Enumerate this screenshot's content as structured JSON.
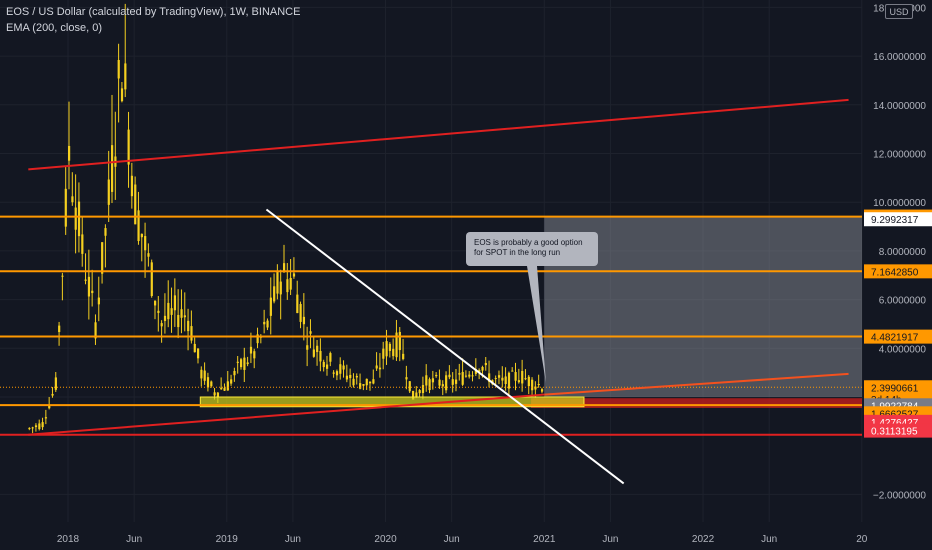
{
  "header": {
    "title": "EOS / US Dollar (calculated by TradingView), 1W, BINANCE",
    "indicator": "EMA (200, close, 0)"
  },
  "currency_button": "USD",
  "annotation": {
    "line1": "EOS is probably a good option",
    "line2": "for SPOT in the long run"
  },
  "colors": {
    "background": "#131722",
    "candle": "#f5d020",
    "orange_level": "#ff9800",
    "red_line": "#e02020",
    "white_line": "#ffffff",
    "support_zone": "#d4d419"
  },
  "chart_data": {
    "type": "candlestick",
    "symbol": "EOSUSD",
    "timeframe": "1W",
    "y_axis_ticks": [
      "18.0000000",
      "16.0000000",
      "14.0000000",
      "12.0000000",
      "10.0000000",
      "8.0000000",
      "6.0000000",
      "4.0000000",
      "2.0000000",
      "−2.0000000"
    ],
    "x_axis_ticks": [
      "2018",
      "Jun",
      "2019",
      "Jun",
      "2020",
      "Jun",
      "2021",
      "Jun",
      "2022",
      "Jun",
      "20"
    ],
    "price_labels": [
      {
        "text": "9.4100850",
        "price": 9.41,
        "kind": "orange"
      },
      {
        "text": "9.2992317",
        "price": 9.3,
        "kind": "white"
      },
      {
        "text": "7.1642850",
        "price": 7.16,
        "kind": "orange"
      },
      {
        "text": "4.4821917",
        "price": 4.48,
        "kind": "orange"
      },
      {
        "text": "2.3990661",
        "price": 2.4,
        "kind": "orange"
      },
      {
        "text": "3d 14h",
        "price": 1.92,
        "kind": "countdown"
      },
      {
        "text": "1.9922784",
        "price": 1.66,
        "kind": "gray"
      },
      {
        "text": "1.6662527",
        "price": 1.33,
        "kind": "orange"
      },
      {
        "text": "1.4276427",
        "price": 0.98,
        "kind": "red"
      },
      {
        "text": "0.3113195",
        "price": 0.62,
        "kind": "red"
      }
    ],
    "horizontal_levels": [
      9.41,
      7.164285,
      4.4821917,
      1.6662527
    ],
    "support_zone": {
      "from": 1.6,
      "to": 2.0
    },
    "trendlines": [
      {
        "name": "upper-channel",
        "color": "red",
        "points": [
          [
            "2017-10",
            11.35
          ],
          [
            "2022-12",
            14.2
          ]
        ]
      },
      {
        "name": "lower-channel",
        "color": "red",
        "points": [
          [
            "2017-10",
            0.45
          ],
          [
            "2021-01",
            2.1
          ]
        ]
      },
      {
        "name": "descending-resistance",
        "color": "white",
        "points": [
          [
            "2019-04",
            9.7
          ],
          [
            "2021-07",
            -1.55
          ]
        ]
      },
      {
        "name": "rising-support-projection",
        "color": "orange-red",
        "points": [
          [
            "2021-01",
            2.1
          ],
          [
            "2022-12",
            2.95
          ]
        ]
      }
    ],
    "projection_box": {
      "from": "2021-01",
      "to": "2022-12",
      "top": 9.41,
      "bottom": 2.0
    },
    "approx_series": [
      [
        "2017-10",
        0.7
      ],
      [
        "2017-11",
        0.9
      ],
      [
        "2017-12",
        2.5
      ],
      [
        "2018-01",
        12.0
      ],
      [
        "2018-02",
        8.0
      ],
      [
        "2018-03",
        5.0
      ],
      [
        "2018-04",
        10.0
      ],
      [
        "2018-05",
        16.0
      ],
      [
        "2018-06",
        10.0
      ],
      [
        "2018-07",
        7.5
      ],
      [
        "2018-08",
        5.0
      ],
      [
        "2018-09",
        5.5
      ],
      [
        "2018-10",
        5.3
      ],
      [
        "2018-11",
        3.0
      ],
      [
        "2018-12",
        2.2
      ],
      [
        "2019-01",
        2.5
      ],
      [
        "2019-02",
        3.3
      ],
      [
        "2019-03",
        3.8
      ],
      [
        "2019-04",
        5.0
      ],
      [
        "2019-05",
        7.0
      ],
      [
        "2019-06",
        6.8
      ],
      [
        "2019-07",
        4.5
      ],
      [
        "2019-08",
        3.8
      ],
      [
        "2019-09",
        3.3
      ],
      [
        "2019-10",
        2.9
      ],
      [
        "2019-11",
        2.6
      ],
      [
        "2019-12",
        2.6
      ],
      [
        "2020-01",
        4.0
      ],
      [
        "2020-02",
        4.2
      ],
      [
        "2020-03",
        2.0
      ],
      [
        "2020-04",
        2.6
      ],
      [
        "2020-05",
        2.6
      ],
      [
        "2020-06",
        2.6
      ],
      [
        "2020-07",
        2.9
      ],
      [
        "2020-08",
        3.4
      ],
      [
        "2020-09",
        2.7
      ],
      [
        "2020-10",
        2.6
      ],
      [
        "2020-11",
        2.9
      ],
      [
        "2020-12",
        2.6
      ],
      [
        "2021-01",
        2.4
      ]
    ]
  }
}
